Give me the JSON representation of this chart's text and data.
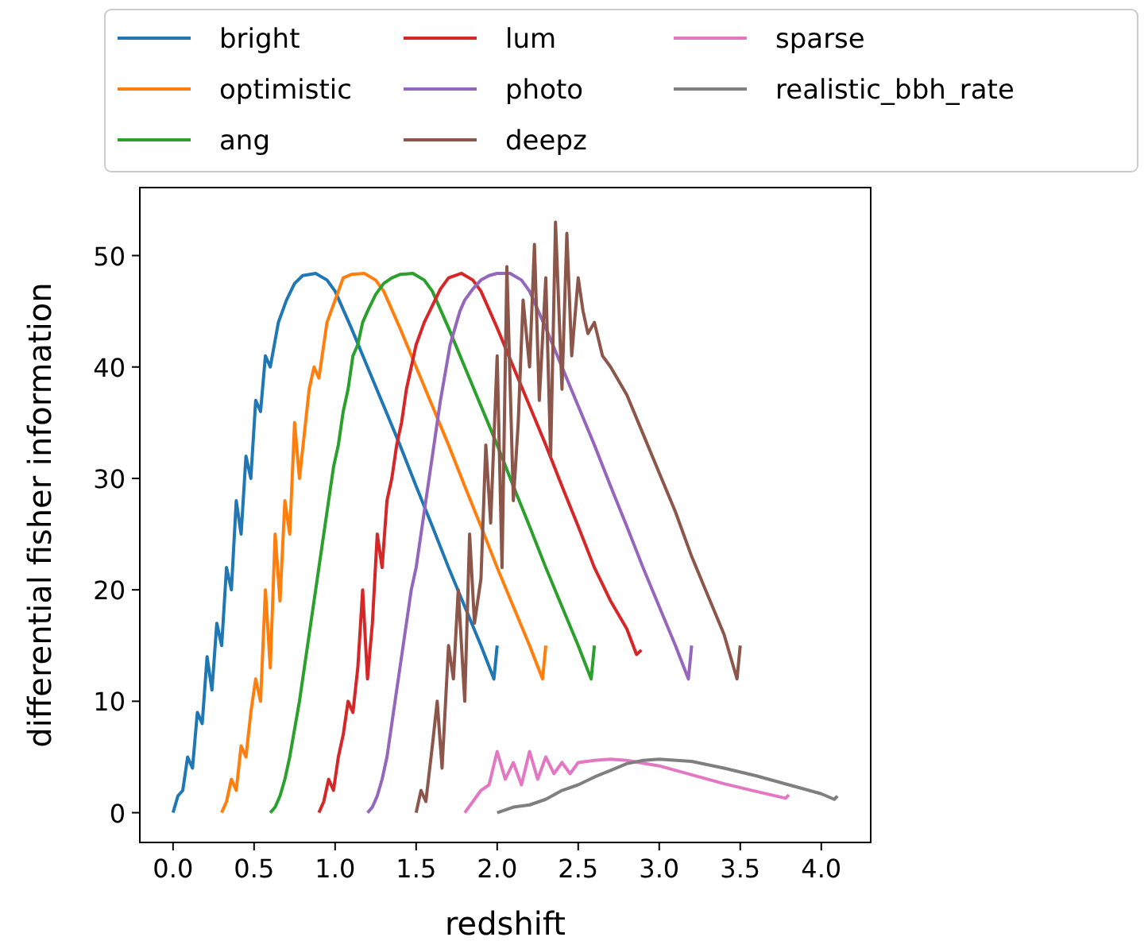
{
  "chart_data": {
    "type": "line",
    "xlabel": "redshift",
    "ylabel": "differential fisher information",
    "xlim": [
      -0.205,
      4.305
    ],
    "ylim": [
      -2.67,
      56.1
    ],
    "xticks": [
      {
        "value": 0,
        "label": "0.0"
      },
      {
        "value": 0.5,
        "label": "0.5"
      },
      {
        "value": 1,
        "label": "1.0"
      },
      {
        "value": 1.5,
        "label": "1.5"
      },
      {
        "value": 2,
        "label": "2.0"
      },
      {
        "value": 2.5,
        "label": "2.5"
      },
      {
        "value": 3,
        "label": "3.0"
      },
      {
        "value": 3.5,
        "label": "3.5"
      },
      {
        "value": 4,
        "label": "4.0"
      }
    ],
    "yticks": [
      0,
      10,
      20,
      30,
      40,
      50
    ],
    "grid": false,
    "legend": "top",
    "marker": "none",
    "line_style": "solid",
    "series": [
      {
        "name": "bright",
        "color": "#1f77b4",
        "x": [
          0,
          0.03,
          0.06,
          0.09,
          0.12,
          0.15,
          0.18,
          0.21,
          0.24,
          0.27,
          0.3,
          0.33,
          0.36,
          0.39,
          0.42,
          0.45,
          0.48,
          0.51,
          0.54,
          0.57,
          0.6,
          0.65,
          0.7,
          0.75,
          0.8,
          0.88,
          0.95,
          1.0,
          1.1,
          1.2,
          1.3,
          1.4,
          1.5,
          1.6,
          1.7,
          1.8,
          1.9,
          1.98,
          2.0
        ],
        "values": [
          0,
          1.5,
          2,
          5,
          4,
          9,
          8,
          14,
          11,
          17,
          15,
          22,
          20,
          28,
          25,
          32,
          30,
          37,
          36,
          41,
          40,
          44,
          46,
          47.5,
          48.2,
          48.4,
          47.8,
          46.8,
          43.5,
          40,
          36.5,
          33,
          29.3,
          25.7,
          22,
          18.5,
          15,
          12,
          15
        ]
      },
      {
        "name": "optimistic",
        "color": "#ff7f0e",
        "x": [
          0.3,
          0.33,
          0.36,
          0.39,
          0.42,
          0.45,
          0.48,
          0.51,
          0.54,
          0.57,
          0.6,
          0.63,
          0.66,
          0.69,
          0.72,
          0.75,
          0.78,
          0.81,
          0.84,
          0.87,
          0.9,
          0.95,
          1.0,
          1.05,
          1.1,
          1.18,
          1.25,
          1.3,
          1.4,
          1.5,
          1.6,
          1.7,
          1.8,
          1.9,
          2.0,
          2.1,
          2.2,
          2.28,
          2.3
        ],
        "values": [
          0,
          1,
          3,
          2,
          6,
          5,
          9,
          12,
          10,
          20,
          13,
          25,
          19,
          28,
          25,
          35,
          30,
          34,
          38,
          40,
          39,
          44,
          46,
          48,
          48.3,
          48.4,
          47.8,
          46.8,
          43.5,
          40,
          36.5,
          33,
          29.3,
          25.7,
          22,
          18.5,
          15,
          12,
          15
        ]
      },
      {
        "name": "ang",
        "color": "#2ca02c",
        "x": [
          0.6,
          0.63,
          0.66,
          0.69,
          0.72,
          0.75,
          0.78,
          0.81,
          0.84,
          0.87,
          0.9,
          0.93,
          0.96,
          0.99,
          1.02,
          1.05,
          1.08,
          1.11,
          1.14,
          1.17,
          1.2,
          1.25,
          1.3,
          1.35,
          1.4,
          1.48,
          1.55,
          1.6,
          1.7,
          1.8,
          1.9,
          2.0,
          2.1,
          2.2,
          2.3,
          2.4,
          2.5,
          2.58,
          2.6
        ],
        "values": [
          0,
          0.5,
          1.5,
          3,
          5,
          7.5,
          10,
          13,
          16,
          19,
          22,
          25,
          28,
          31,
          33,
          36,
          38,
          41,
          42,
          44,
          45,
          46.5,
          47.5,
          48,
          48.3,
          48.4,
          47.8,
          46.8,
          43.5,
          40,
          36.5,
          33,
          29.3,
          25.7,
          22,
          18.5,
          15,
          12,
          15
        ]
      },
      {
        "name": "lum",
        "color": "#d62728",
        "x": [
          0.9,
          0.93,
          0.96,
          0.99,
          1.02,
          1.05,
          1.08,
          1.11,
          1.14,
          1.17,
          1.2,
          1.23,
          1.26,
          1.29,
          1.32,
          1.35,
          1.38,
          1.41,
          1.44,
          1.47,
          1.5,
          1.55,
          1.6,
          1.65,
          1.7,
          1.78,
          1.85,
          1.9,
          2.0,
          2.1,
          2.2,
          2.3,
          2.4,
          2.5,
          2.6,
          2.7,
          2.8,
          2.86,
          2.89
        ],
        "values": [
          0,
          1,
          3,
          2,
          5,
          7,
          10,
          9,
          13,
          20,
          12,
          17,
          25,
          22,
          28,
          30,
          33,
          35,
          38,
          40,
          42,
          44,
          45.5,
          47,
          48,
          48.4,
          47.8,
          46.8,
          43.5,
          40,
          36.5,
          33,
          29.3,
          25.7,
          22,
          19,
          16.5,
          14.2,
          14.6
        ]
      },
      {
        "name": "photo",
        "color": "#9467bd",
        "x": [
          1.2,
          1.23,
          1.26,
          1.29,
          1.32,
          1.35,
          1.38,
          1.41,
          1.44,
          1.47,
          1.5,
          1.53,
          1.56,
          1.59,
          1.62,
          1.65,
          1.68,
          1.71,
          1.74,
          1.77,
          1.8,
          1.85,
          1.9,
          1.95,
          2.0,
          2.08,
          2.15,
          2.2,
          2.3,
          2.4,
          2.5,
          2.6,
          2.7,
          2.8,
          2.9,
          3.0,
          3.1,
          3.18,
          3.2
        ],
        "values": [
          0,
          0.5,
          1.5,
          3,
          5,
          8,
          11,
          14,
          17,
          20,
          22,
          25,
          28,
          31,
          34,
          37,
          39.5,
          42,
          43.5,
          45,
          46,
          47,
          47.8,
          48.2,
          48.4,
          48.4,
          47.8,
          46.8,
          43.5,
          40,
          36.5,
          33,
          29.3,
          25.7,
          22,
          18.5,
          15,
          12,
          15
        ]
      },
      {
        "name": "deepz",
        "color": "#8c564b",
        "x": [
          1.5,
          1.53,
          1.56,
          1.6,
          1.63,
          1.66,
          1.7,
          1.73,
          1.76,
          1.8,
          1.83,
          1.86,
          1.9,
          1.93,
          1.96,
          2.0,
          2.03,
          2.06,
          2.1,
          2.13,
          2.16,
          2.2,
          2.23,
          2.26,
          2.3,
          2.33,
          2.36,
          2.4,
          2.43,
          2.46,
          2.5,
          2.53,
          2.56,
          2.6,
          2.65,
          2.7,
          2.8,
          2.9,
          3.0,
          3.1,
          3.2,
          3.3,
          3.4,
          3.48,
          3.5
        ],
        "values": [
          0,
          2,
          1,
          6,
          10,
          4,
          15,
          12,
          20,
          10,
          25,
          17,
          21,
          33,
          26,
          41,
          22,
          49,
          28,
          35,
          46,
          40,
          51,
          37,
          48,
          32,
          53,
          38,
          52,
          41,
          48,
          45,
          43,
          44,
          41,
          40,
          37.5,
          34,
          30.5,
          27,
          23,
          19.5,
          16,
          12,
          15
        ]
      },
      {
        "name": "sparse",
        "color": "#e377c2",
        "x": [
          1.8,
          1.85,
          1.9,
          1.95,
          2.0,
          2.05,
          2.1,
          2.15,
          2.2,
          2.25,
          2.3,
          2.35,
          2.4,
          2.45,
          2.5,
          2.6,
          2.7,
          2.8,
          3.0,
          3.2,
          3.4,
          3.6,
          3.78,
          3.8
        ],
        "values": [
          0,
          1,
          2,
          2.5,
          5.5,
          3,
          4.5,
          2.5,
          5.5,
          3,
          5,
          3.5,
          4.5,
          3.5,
          4.5,
          4.7,
          4.8,
          4.7,
          4.2,
          3.4,
          2.6,
          1.9,
          1.3,
          1.6
        ]
      },
      {
        "name": "realistic_bbh_rate",
        "color": "#7f7f7f",
        "x": [
          2.0,
          2.1,
          2.2,
          2.3,
          2.4,
          2.5,
          2.6,
          2.7,
          2.8,
          2.9,
          3.0,
          3.2,
          3.4,
          3.6,
          3.8,
          4.0,
          4.08,
          4.1
        ],
        "values": [
          0,
          0.5,
          0.7,
          1.2,
          2,
          2.5,
          3.2,
          3.8,
          4.4,
          4.7,
          4.8,
          4.6,
          4.0,
          3.3,
          2.5,
          1.7,
          1.2,
          1.5
        ]
      }
    ]
  }
}
